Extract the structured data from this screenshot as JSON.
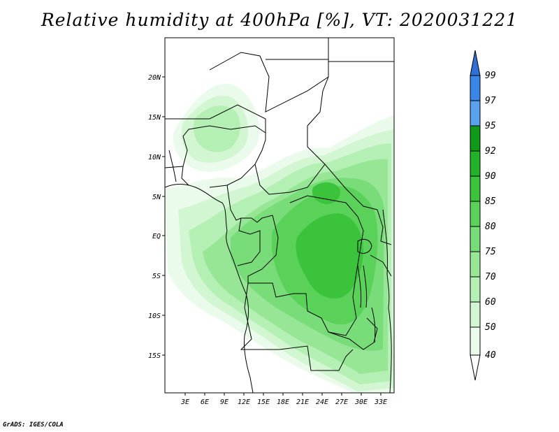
{
  "title": "Relative humidity at 400hPa [%], VT: 2020031221",
  "credit": "GrADS: IGES/COLA",
  "map": {
    "lat_ticks": [
      "20N",
      "15N",
      "10N",
      "5N",
      "EQ",
      "5S",
      "10S",
      "15S"
    ],
    "lon_ticks": [
      "3E",
      "6E",
      "9E",
      "12E",
      "15E",
      "18E",
      "21E",
      "24E",
      "27E",
      "30E",
      "33E"
    ]
  },
  "colorbar": {
    "levels": [
      "99",
      "97",
      "95",
      "92",
      "90",
      "85",
      "80",
      "75",
      "70",
      "60",
      "50",
      "40"
    ],
    "colors": [
      "#2f6fd6",
      "#3a86e6",
      "#5aa2f0",
      "#0f9a1a",
      "#22b22a",
      "#3cc33c",
      "#5ad25a",
      "#78dc78",
      "#96e696",
      "#b4f0b4",
      "#d2f5d2",
      "#ebfbeb"
    ]
  },
  "field_colors": {
    "c40": "#ebfbeb",
    "c50": "#d2f5d2",
    "c60": "#b4f0b4",
    "c70": "#96e696",
    "c75": "#78dc78",
    "c80": "#5ad25a",
    "c85": "#3cc33c"
  }
}
